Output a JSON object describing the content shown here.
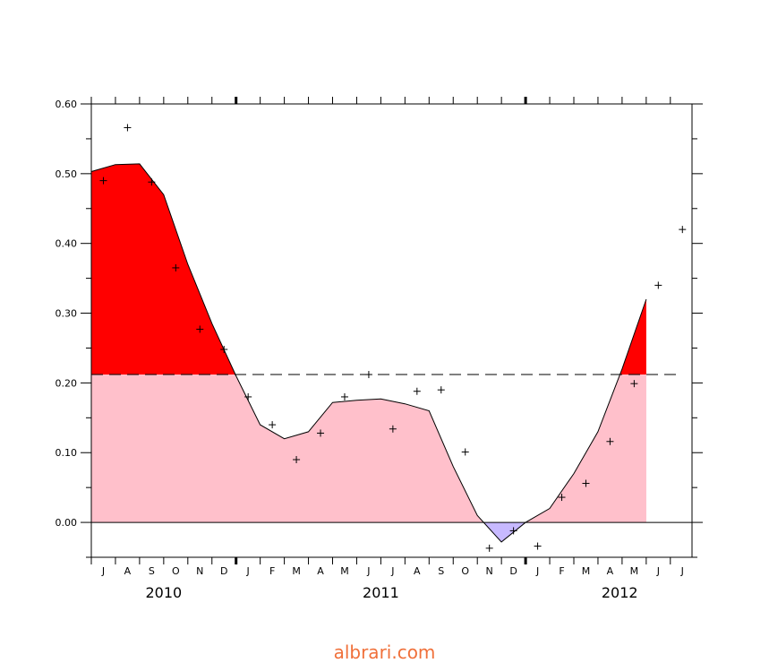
{
  "chart_data": {
    "type": "area",
    "title": "",
    "xlabel": "",
    "ylabel": "",
    "ylim": [
      -0.05,
      0.6
    ],
    "y_ticks": [
      "0.60",
      "0.50",
      "0.40",
      "0.30",
      "0.20",
      "0.10",
      "0.00"
    ],
    "months": [
      "J",
      "A",
      "S",
      "O",
      "N",
      "D",
      "J",
      "F",
      "M",
      "A",
      "M",
      "J",
      "J",
      "A",
      "S",
      "O",
      "N",
      "D",
      "J",
      "F",
      "M",
      "A",
      "M",
      "J",
      "J"
    ],
    "years": [
      "2010",
      "2011",
      "2012"
    ],
    "threshold": 0.212,
    "baseline": 0.0,
    "smoothed": [
      0.503,
      0.513,
      0.514,
      0.47,
      0.37,
      0.285,
      0.21,
      0.14,
      0.12,
      0.13,
      0.172,
      0.175,
      0.177,
      0.17,
      0.16,
      0.08,
      0.01,
      -0.028,
      0.0,
      0.02,
      0.07,
      0.13,
      0.22,
      0.32
    ],
    "smoothed_start": 0.0,
    "points": [
      0.49,
      0.566,
      0.488,
      0.365,
      0.277,
      0.248,
      0.18,
      0.14,
      0.09,
      0.128,
      0.18,
      0.212,
      0.134,
      0.188,
      0.19,
      0.101,
      -0.037,
      -0.012,
      -0.034,
      0.036,
      0.056,
      0.116,
      0.199,
      0.34,
      0.42
    ],
    "colors": {
      "above_threshold": "#ff0000",
      "below_threshold": "#ffc0cb",
      "negative": "#c7b9ff",
      "line": "#000000"
    }
  },
  "watermark": "albrari.com"
}
